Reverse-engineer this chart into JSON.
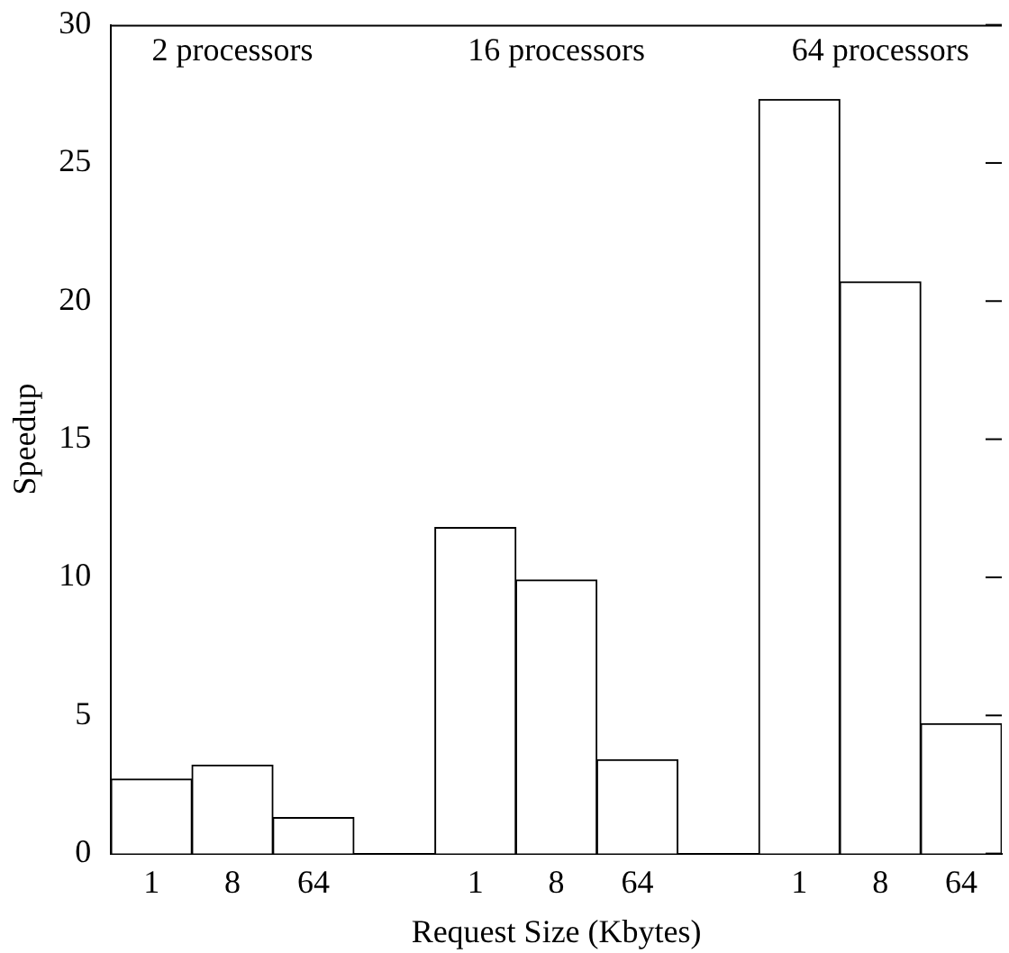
{
  "chart_data": {
    "type": "bar",
    "xlabel": "Request Size (Kbytes)",
    "ylabel": "Speedup",
    "categories": [
      "1",
      "8",
      "64",
      null,
      "1",
      "8",
      "64",
      null,
      "1",
      "8",
      "64"
    ],
    "values": [
      2.7,
      3.2,
      1.3,
      null,
      11.8,
      9.9,
      3.4,
      null,
      27.3,
      20.7,
      4.7
    ],
    "color": "#ffffff",
    "annotations": [
      "2 processors",
      "16 processors",
      "64 processors"
    ],
    "ylim": [
      0,
      30
    ],
    "yticks": [
      0,
      5,
      10,
      15,
      20,
      25,
      30
    ],
    "grid": false,
    "legend": false
  }
}
